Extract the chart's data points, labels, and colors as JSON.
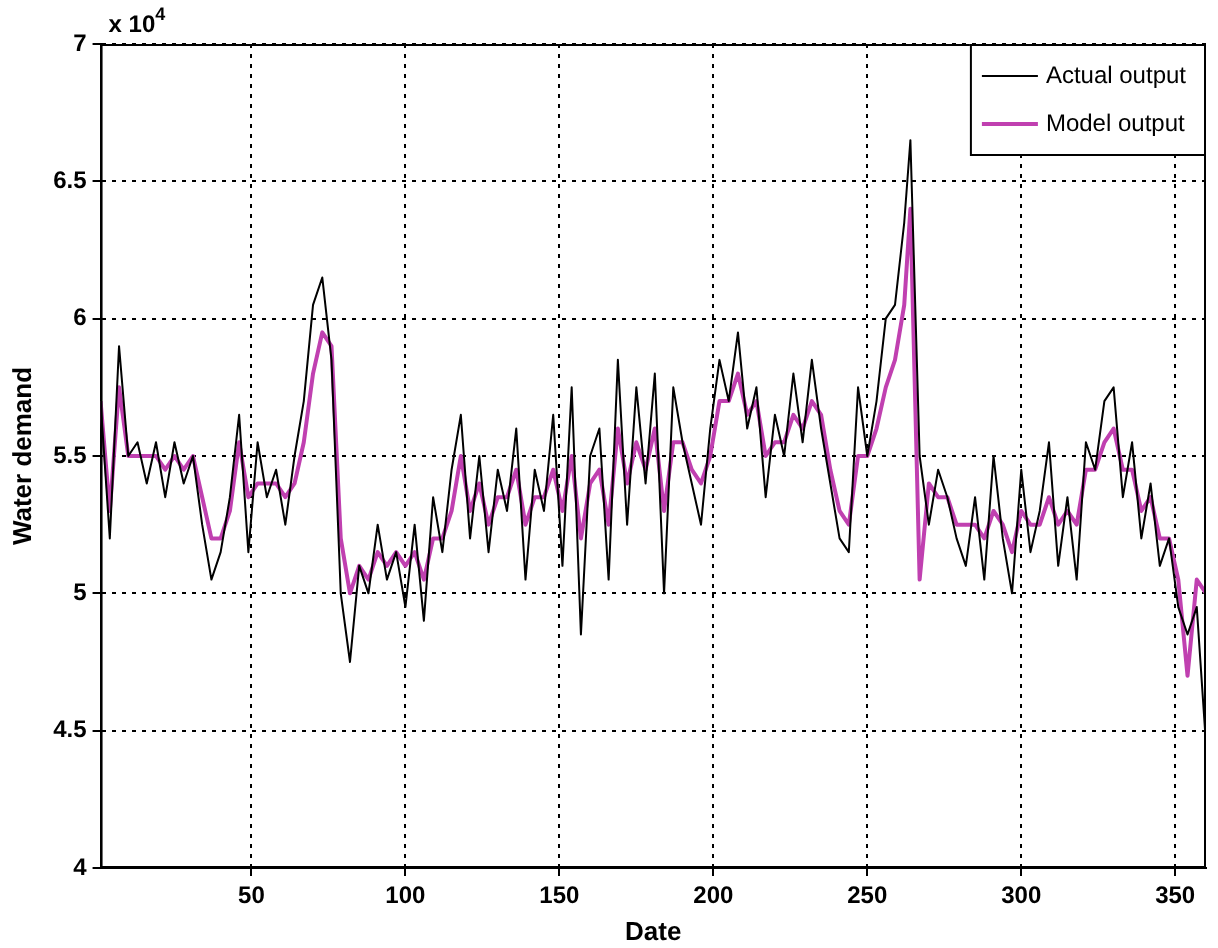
{
  "chart_data": {
    "type": "line",
    "xlabel": "Date",
    "ylabel": "Water demand",
    "annotations": [
      "x 10$^{4}$"
    ],
    "xlim": [
      1,
      360
    ],
    "xticks": [
      50,
      100,
      150,
      200,
      250,
      300,
      350
    ],
    "ylim": [
      4,
      7
    ],
    "yticks": [
      4,
      4.5,
      5,
      5.5,
      6,
      6.5,
      7
    ],
    "grid": true,
    "legend": "top right",
    "x": [
      1,
      4,
      7,
      10,
      13,
      16,
      19,
      22,
      25,
      28,
      31,
      34,
      37,
      40,
      43,
      46,
      49,
      52,
      55,
      58,
      61,
      64,
      67,
      70,
      73,
      76,
      79,
      82,
      85,
      88,
      91,
      94,
      97,
      100,
      103,
      106,
      109,
      112,
      115,
      118,
      121,
      124,
      127,
      130,
      133,
      136,
      139,
      142,
      145,
      148,
      151,
      154,
      157,
      160,
      163,
      166,
      169,
      172,
      175,
      178,
      181,
      184,
      187,
      190,
      193,
      196,
      199,
      202,
      205,
      208,
      211,
      214,
      217,
      220,
      223,
      226,
      229,
      232,
      235,
      238,
      241,
      244,
      247,
      250,
      253,
      256,
      259,
      262,
      264,
      267,
      270,
      273,
      276,
      279,
      282,
      285,
      288,
      291,
      294,
      297,
      300,
      303,
      306,
      309,
      312,
      315,
      318,
      321,
      324,
      327,
      330,
      333,
      336,
      339,
      342,
      345,
      348,
      351,
      354,
      357,
      360
    ],
    "series": [
      {
        "name": "Actual output",
        "color": "#000000",
        "values": [
          5.7,
          5.2,
          5.9,
          5.5,
          5.55,
          5.4,
          5.55,
          5.35,
          5.55,
          5.4,
          5.5,
          5.25,
          5.05,
          5.15,
          5.35,
          5.65,
          5.15,
          5.55,
          5.35,
          5.45,
          5.25,
          5.5,
          5.7,
          6.05,
          6.15,
          5.85,
          5.0,
          4.75,
          5.1,
          5.0,
          5.25,
          5.05,
          5.15,
          4.95,
          5.25,
          4.9,
          5.35,
          5.15,
          5.45,
          5.65,
          5.2,
          5.5,
          5.15,
          5.45,
          5.3,
          5.6,
          5.05,
          5.45,
          5.3,
          5.65,
          5.1,
          5.75,
          4.85,
          5.5,
          5.6,
          5.05,
          5.85,
          5.25,
          5.75,
          5.4,
          5.8,
          5.0,
          5.75,
          5.55,
          5.4,
          5.25,
          5.6,
          5.85,
          5.7,
          5.95,
          5.6,
          5.75,
          5.35,
          5.65,
          5.5,
          5.8,
          5.55,
          5.85,
          5.6,
          5.4,
          5.2,
          5.15,
          5.75,
          5.5,
          5.7,
          6.0,
          6.05,
          6.35,
          6.65,
          5.5,
          5.25,
          5.45,
          5.35,
          5.2,
          5.1,
          5.35,
          5.05,
          5.5,
          5.2,
          5.0,
          5.45,
          5.15,
          5.3,
          5.55,
          5.1,
          5.35,
          5.05,
          5.55,
          5.45,
          5.7,
          5.75,
          5.35,
          5.55,
          5.2,
          5.4,
          5.1,
          5.2,
          4.95,
          4.85,
          4.95,
          4.45
        ]
      },
      {
        "name": "Model output",
        "color": "#c040b0",
        "values": [
          5.7,
          5.3,
          5.75,
          5.5,
          5.5,
          5.5,
          5.5,
          5.45,
          5.5,
          5.45,
          5.5,
          5.35,
          5.2,
          5.2,
          5.3,
          5.55,
          5.35,
          5.4,
          5.4,
          5.4,
          5.35,
          5.4,
          5.55,
          5.8,
          5.95,
          5.9,
          5.2,
          5.0,
          5.1,
          5.05,
          5.15,
          5.1,
          5.15,
          5.1,
          5.15,
          5.05,
          5.2,
          5.2,
          5.3,
          5.5,
          5.3,
          5.4,
          5.25,
          5.35,
          5.35,
          5.45,
          5.25,
          5.35,
          5.35,
          5.45,
          5.3,
          5.5,
          5.2,
          5.4,
          5.45,
          5.25,
          5.6,
          5.4,
          5.55,
          5.45,
          5.6,
          5.3,
          5.55,
          5.55,
          5.45,
          5.4,
          5.5,
          5.7,
          5.7,
          5.8,
          5.65,
          5.7,
          5.5,
          5.55,
          5.55,
          5.65,
          5.6,
          5.7,
          5.65,
          5.45,
          5.3,
          5.25,
          5.5,
          5.5,
          5.6,
          5.75,
          5.85,
          6.05,
          6.4,
          5.05,
          5.4,
          5.35,
          5.35,
          5.25,
          5.25,
          5.25,
          5.2,
          5.3,
          5.25,
          5.15,
          5.3,
          5.25,
          5.25,
          5.35,
          5.25,
          5.3,
          5.25,
          5.45,
          5.45,
          5.55,
          5.6,
          5.45,
          5.45,
          5.3,
          5.35,
          5.2,
          5.2,
          5.05,
          4.7,
          5.05,
          5.0
        ]
      }
    ]
  }
}
